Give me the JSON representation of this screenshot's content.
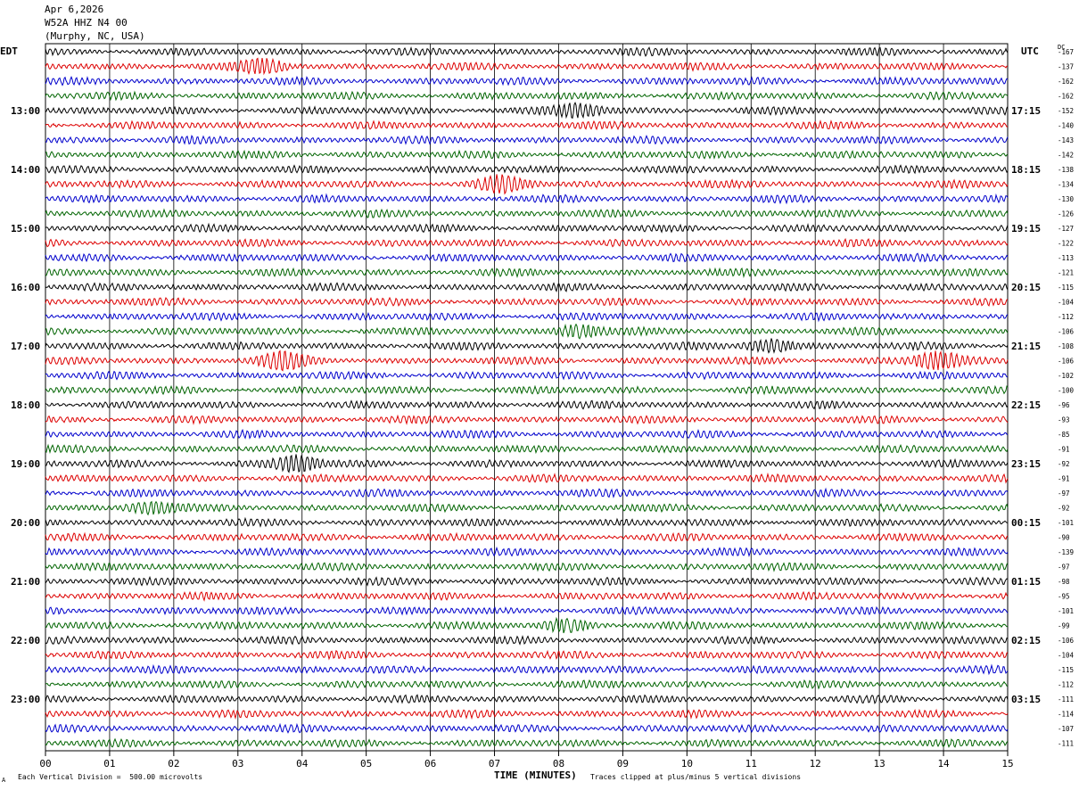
{
  "header": {
    "date": "Apr 6,2026",
    "station": "W52A HHZ N4 00",
    "location": "(Murphy, NC, USA)"
  },
  "axes": {
    "left_tz": "EDT",
    "right_tz": "UTC",
    "dc_label": "DC",
    "xlabel": "TIME (MINUTES)",
    "x_ticks": [
      "00",
      "01",
      "02",
      "03",
      "04",
      "05",
      "06",
      "07",
      "08",
      "09",
      "10",
      "11",
      "12",
      "13",
      "14",
      "15"
    ]
  },
  "footer": {
    "scale_note": "Each Vertical Division =  500.00 microvolts",
    "clip_note": "Traces clipped at plus/minus 5 vertical divisions",
    "corner_mark": "A"
  },
  "colors": {
    "cycle": [
      "#000000",
      "#dd0000",
      "#0000cc",
      "#006400"
    ],
    "grid": "#000000"
  },
  "chart_data": {
    "type": "line",
    "title": "",
    "x_unit": "minutes",
    "xlim": [
      0,
      15
    ],
    "rows_per_hour": 4,
    "left_hour_labels": [
      "13:00",
      "14:00",
      "15:00",
      "16:00",
      "17:00",
      "18:00",
      "19:00",
      "20:00",
      "21:00",
      "22:00",
      "23:00"
    ],
    "right_hour_labels": [
      "17:15",
      "18:15",
      "19:15",
      "20:15",
      "21:15",
      "22:15",
      "23:15",
      "00:15",
      "01:15",
      "02:15",
      "03:15"
    ],
    "dc_offsets": [
      "-167",
      "-137",
      "-162",
      "-162",
      "-152",
      "-140",
      "-143",
      "-142",
      "-138",
      "-134",
      "-130",
      "-126",
      "-127",
      "-122",
      "-113",
      "-121",
      "-115",
      "-104",
      "-112",
      "-106",
      "-108",
      "-106",
      "-102",
      "-100",
      "-96",
      "-93",
      "-85",
      "-91",
      "-92",
      "-91",
      "-97",
      "-92",
      "-101",
      "-90",
      "-139",
      "-97",
      "-98",
      "-95",
      "-101",
      "-99",
      "-106",
      "-104",
      "-115",
      "-112",
      "-111",
      "-114",
      "-107",
      "-111"
    ],
    "events": [
      {
        "row": 1,
        "minute": 3.4,
        "strength": 1.3
      },
      {
        "row": 4,
        "minute": 8.3,
        "strength": 1.3
      },
      {
        "row": 9,
        "minute": 7.1,
        "strength": 1.5
      },
      {
        "row": 19,
        "minute": 8.3,
        "strength": 1.4
      },
      {
        "row": 20,
        "minute": 11.3,
        "strength": 1.4
      },
      {
        "row": 21,
        "minute": 3.7,
        "strength": 1.6
      },
      {
        "row": 21,
        "minute": 13.9,
        "strength": 1.8
      },
      {
        "row": 28,
        "minute": 3.9,
        "strength": 1.6
      },
      {
        "row": 31,
        "minute": 1.6,
        "strength": 1.3
      },
      {
        "row": 39,
        "minute": 8.1,
        "strength": 1.2
      }
    ]
  }
}
